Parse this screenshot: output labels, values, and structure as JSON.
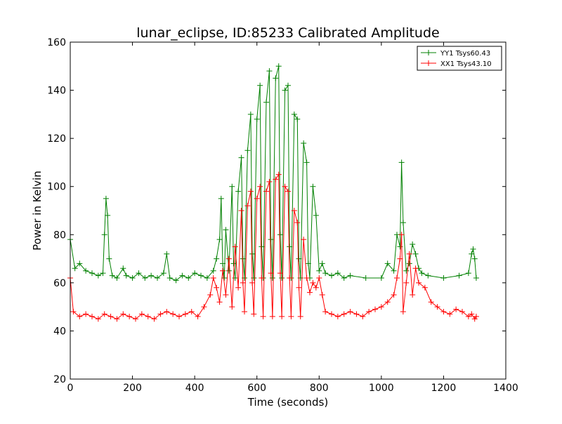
{
  "chart_data": {
    "type": "line",
    "title": "lunar_eclipse, ID:85233 Calibrated Amplitude",
    "xlabel": "Time (seconds)",
    "ylabel": "Power in Kelvin",
    "xlim": [
      0,
      1400
    ],
    "ylim": [
      20,
      160
    ],
    "xticks": [
      0,
      200,
      400,
      600,
      800,
      1000,
      1200,
      1400
    ],
    "yticks": [
      20,
      40,
      60,
      80,
      100,
      120,
      140,
      160
    ],
    "grid": false,
    "legend_position": "top-right",
    "marker": "+",
    "series": [
      {
        "name": "YY1 Tsys60.43",
        "color": "#008000",
        "x": [
          0,
          15,
          30,
          50,
          70,
          90,
          105,
          110,
          115,
          120,
          125,
          135,
          150,
          170,
          180,
          200,
          220,
          240,
          260,
          280,
          300,
          310,
          320,
          340,
          360,
          380,
          400,
          420,
          440,
          460,
          470,
          480,
          485,
          490,
          495,
          500,
          510,
          520,
          525,
          530,
          540,
          550,
          555,
          560,
          570,
          580,
          585,
          590,
          600,
          610,
          615,
          620,
          630,
          640,
          645,
          650,
          660,
          670,
          675,
          680,
          690,
          700,
          705,
          710,
          720,
          730,
          735,
          740,
          750,
          760,
          765,
          770,
          780,
          790,
          800,
          810,
          820,
          840,
          860,
          880,
          900,
          950,
          1000,
          1020,
          1040,
          1050,
          1060,
          1065,
          1070,
          1080,
          1090,
          1100,
          1110,
          1120,
          1130,
          1150,
          1200,
          1250,
          1280,
          1290,
          1295,
          1300,
          1305
        ],
        "y": [
          78,
          66,
          68,
          65,
          64,
          63,
          64,
          80,
          95,
          88,
          70,
          63,
          62,
          66,
          63,
          62,
          64,
          62,
          63,
          62,
          64,
          72,
          62,
          61,
          63,
          62,
          64,
          63,
          62,
          65,
          70,
          78,
          95,
          68,
          62,
          82,
          65,
          100,
          68,
          62,
          98,
          112,
          70,
          62,
          115,
          130,
          72,
          62,
          128,
          142,
          75,
          62,
          135,
          148,
          78,
          62,
          145,
          150,
          80,
          62,
          140,
          142,
          75,
          62,
          130,
          128,
          70,
          62,
          118,
          110,
          68,
          62,
          100,
          88,
          65,
          68,
          64,
          63,
          64,
          62,
          63,
          62,
          62,
          68,
          65,
          80,
          75,
          110,
          85,
          65,
          68,
          76,
          72,
          66,
          64,
          63,
          62,
          63,
          64,
          72,
          74,
          70,
          62
        ]
      },
      {
        "name": "XX1 Tsys43.10",
        "color": "#ff0000",
        "x": [
          0,
          10,
          30,
          50,
          70,
          90,
          110,
          130,
          150,
          170,
          190,
          210,
          230,
          250,
          270,
          290,
          310,
          330,
          350,
          370,
          390,
          410,
          430,
          450,
          460,
          470,
          480,
          490,
          500,
          510,
          520,
          530,
          540,
          550,
          555,
          560,
          570,
          580,
          585,
          590,
          600,
          610,
          615,
          620,
          630,
          640,
          645,
          650,
          660,
          670,
          675,
          680,
          690,
          700,
          705,
          710,
          720,
          730,
          735,
          740,
          750,
          760,
          770,
          780,
          790,
          800,
          810,
          820,
          840,
          860,
          880,
          900,
          920,
          940,
          960,
          980,
          1000,
          1020,
          1040,
          1050,
          1060,
          1065,
          1070,
          1080,
          1090,
          1100,
          1110,
          1120,
          1140,
          1160,
          1180,
          1200,
          1220,
          1240,
          1260,
          1280,
          1290,
          1300,
          1305
        ],
        "y": [
          62,
          48,
          46,
          47,
          46,
          45,
          47,
          46,
          45,
          47,
          46,
          45,
          47,
          46,
          45,
          47,
          48,
          47,
          46,
          47,
          48,
          46,
          50,
          55,
          62,
          58,
          52,
          65,
          55,
          70,
          50,
          75,
          58,
          90,
          60,
          48,
          92,
          98,
          60,
          47,
          95,
          100,
          62,
          46,
          98,
          102,
          64,
          46,
          103,
          105,
          64,
          46,
          100,
          98,
          62,
          46,
          90,
          85,
          58,
          46,
          78,
          62,
          56,
          60,
          58,
          62,
          55,
          48,
          47,
          46,
          47,
          48,
          47,
          46,
          48,
          49,
          50,
          52,
          55,
          62,
          70,
          80,
          48,
          60,
          72,
          55,
          66,
          60,
          58,
          52,
          50,
          48,
          47,
          49,
          48,
          46,
          47,
          45,
          46
        ]
      }
    ]
  }
}
